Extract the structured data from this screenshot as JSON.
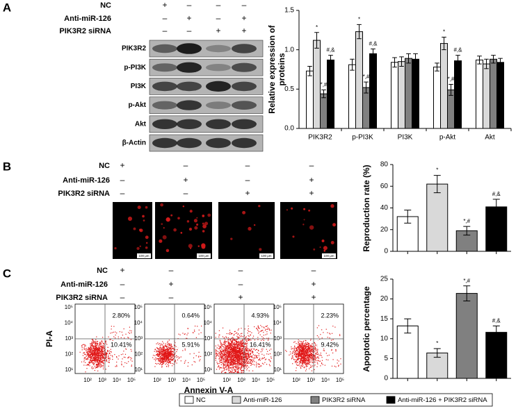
{
  "panel_labels": [
    "A",
    "B",
    "C"
  ],
  "treatments": [
    {
      "rows": [
        {
          "label": "NC",
          "signs": [
            "+",
            "–",
            "–",
            "–"
          ]
        },
        {
          "label": "Anti-miR-126",
          "signs": [
            "–",
            "+",
            "–",
            "+"
          ]
        },
        {
          "label": "PIK3R2 siRNA",
          "signs": [
            "–",
            "–",
            "+",
            "+"
          ]
        }
      ]
    },
    {
      "rows": [
        {
          "label": "NC",
          "signs": [
            "+",
            "–",
            "–",
            "–"
          ]
        },
        {
          "label": "Anti-miR-126",
          "signs": [
            "–",
            "+",
            "–",
            "+"
          ]
        },
        {
          "label": "PIK3R2 siRNA",
          "signs": [
            "–",
            "–",
            "+",
            "+"
          ]
        }
      ]
    },
    {
      "rows": [
        {
          "label": "NC",
          "signs": [
            "+",
            "–",
            "–",
            "–"
          ]
        },
        {
          "label": "Anti-miR-126",
          "signs": [
            "–",
            "+",
            "–",
            "+"
          ]
        },
        {
          "label": "PIK3R2 siRNA",
          "signs": [
            "–",
            "–",
            "+",
            "+"
          ]
        }
      ]
    }
  ],
  "blot": {
    "labels": [
      "PIK3R2",
      "p-PI3K",
      "PI3K",
      "p-Akt",
      "Akt",
      "β-Actin"
    ]
  },
  "images": {
    "scale_bars": [
      "100 μm",
      "100 μm",
      "100 μm",
      "100 μm"
    ]
  },
  "flow": {
    "y_label": "PI-A",
    "x_label": "Annexin V-A",
    "y_ticks": [
      "10⁵",
      "10⁴",
      "10³",
      "10²",
      "10¹"
    ],
    "x_ticks": [
      "10²",
      "10³",
      "10⁴",
      "10⁵"
    ],
    "plots": [
      {
        "upper_right": "2.80%",
        "lower_right": "10.41%"
      },
      {
        "upper_right": "0.64%",
        "lower_right": "5.91%"
      },
      {
        "upper_right": "4.93%",
        "lower_right": "16.41%"
      },
      {
        "upper_right": "2.23%",
        "lower_right": "9.42%"
      }
    ]
  },
  "chart_data": [
    {
      "type": "bar",
      "y_label": "Relative expression of proteins",
      "categories": [
        "PIK3R2",
        "p-PI3K",
        "PI3K",
        "p-Akt",
        "Akt"
      ],
      "series": [
        {
          "name": "NC",
          "color": "#ffffff",
          "values": [
            0.73,
            0.81,
            0.84,
            0.78,
            0.87
          ],
          "errors": [
            0.06,
            0.07,
            0.06,
            0.05,
            0.05
          ],
          "annotations": [
            null,
            null,
            null,
            null,
            null
          ]
        },
        {
          "name": "Anti-miR-126",
          "color": "#d9d9d9",
          "values": [
            1.12,
            1.23,
            0.85,
            1.08,
            0.82
          ],
          "errors": [
            0.1,
            0.09,
            0.06,
            0.08,
            0.06
          ],
          "annotations": [
            "*",
            "*",
            null,
            "*",
            null
          ]
        },
        {
          "name": "PIK3R2 siRNA",
          "color": "#808080",
          "values": [
            0.44,
            0.52,
            0.89,
            0.49,
            0.88
          ],
          "errors": [
            0.05,
            0.07,
            0.06,
            0.07,
            0.05
          ],
          "annotations": [
            "*,#",
            "*,#",
            null,
            "*,#",
            null
          ]
        },
        {
          "name": "Anti-miR-126 + PIK3R2 siRNA",
          "color": "#000000",
          "values": [
            0.87,
            0.95,
            0.88,
            0.86,
            0.84
          ],
          "errors": [
            0.06,
            0.06,
            0.07,
            0.07,
            0.05
          ],
          "annotations": [
            "#,&",
            "#,&",
            null,
            "#,&",
            null
          ]
        }
      ],
      "ylim": [
        0,
        1.5
      ],
      "yticks": [
        {
          "value": 0,
          "label": "0.0"
        },
        0.5,
        {
          "value": 1,
          "label": "1.0"
        },
        1.5
      ]
    },
    {
      "type": "bar",
      "y_label": "Reproduction rate (%)",
      "values": [
        32,
        62,
        19,
        41
      ],
      "errors": [
        6,
        8,
        4,
        7
      ],
      "annotations": [
        null,
        "*",
        "*,#",
        "#,&"
      ],
      "colors": [
        "#ffffff",
        "#d9d9d9",
        "#808080",
        "#000000"
      ],
      "ylim": [
        0,
        80
      ],
      "yticks": [
        0,
        20,
        40,
        60,
        80
      ]
    },
    {
      "type": "bar",
      "y_label": "Apoptotic percentage",
      "values": [
        13.2,
        6.4,
        21.4,
        11.6
      ],
      "errors": [
        1.8,
        1.1,
        1.9,
        1.6
      ],
      "annotations": [
        null,
        "*",
        "*,#",
        "#,&"
      ],
      "colors": [
        "#ffffff",
        "#d9d9d9",
        "#808080",
        "#000000"
      ],
      "ylim": [
        0,
        25
      ],
      "yticks": [
        0,
        5,
        10,
        15,
        20,
        25
      ]
    }
  ]
}
